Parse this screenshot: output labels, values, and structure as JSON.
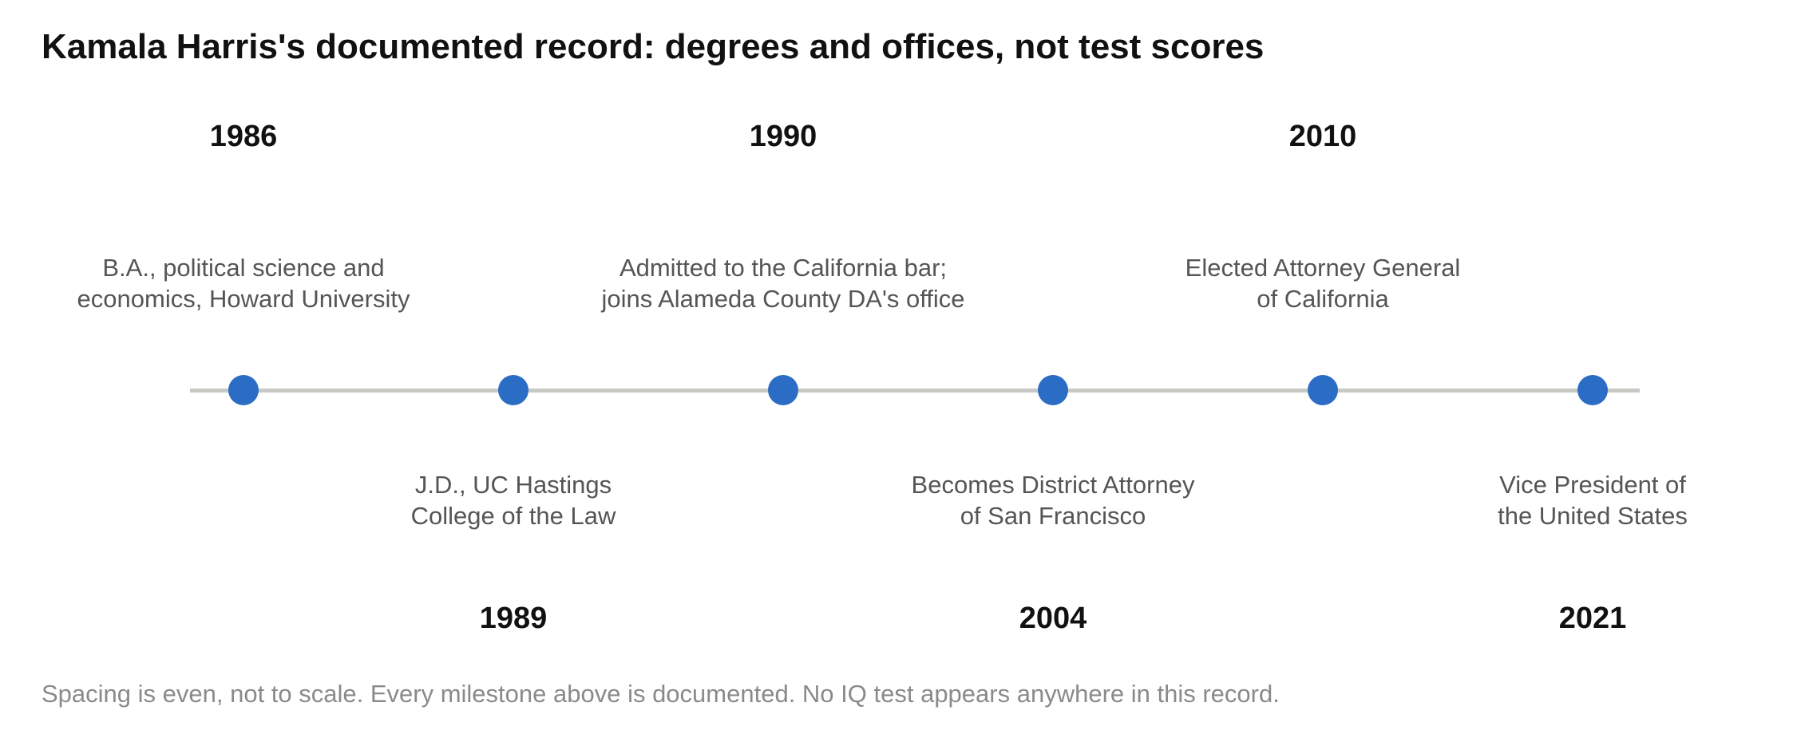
{
  "title": "Kamala Harris's documented record: degrees and offices, not test scores",
  "accent_color": "#2b6cc4",
  "axis_color": "#c8c8c4",
  "events": [
    {
      "year": "1986",
      "lines": [
        "B.A., political science and",
        "economics, Howard University"
      ],
      "side": "above"
    },
    {
      "year": "1989",
      "lines": [
        "J.D., UC Hastings",
        "College of the Law"
      ],
      "side": "below"
    },
    {
      "year": "1990",
      "lines": [
        "Admitted to the California bar;",
        "joins Alameda County DA's office"
      ],
      "side": "above"
    },
    {
      "year": "2004",
      "lines": [
        "Becomes District Attorney",
        "of San Francisco"
      ],
      "side": "below"
    },
    {
      "year": "2010",
      "lines": [
        "Elected Attorney General",
        "of California"
      ],
      "side": "above"
    },
    {
      "year": "2021",
      "lines": [
        "Vice President of",
        "the United States"
      ],
      "side": "below"
    }
  ],
  "footnote": "Spacing is even, not to scale. Every milestone above is documented. No IQ test appears anywhere in this record."
}
